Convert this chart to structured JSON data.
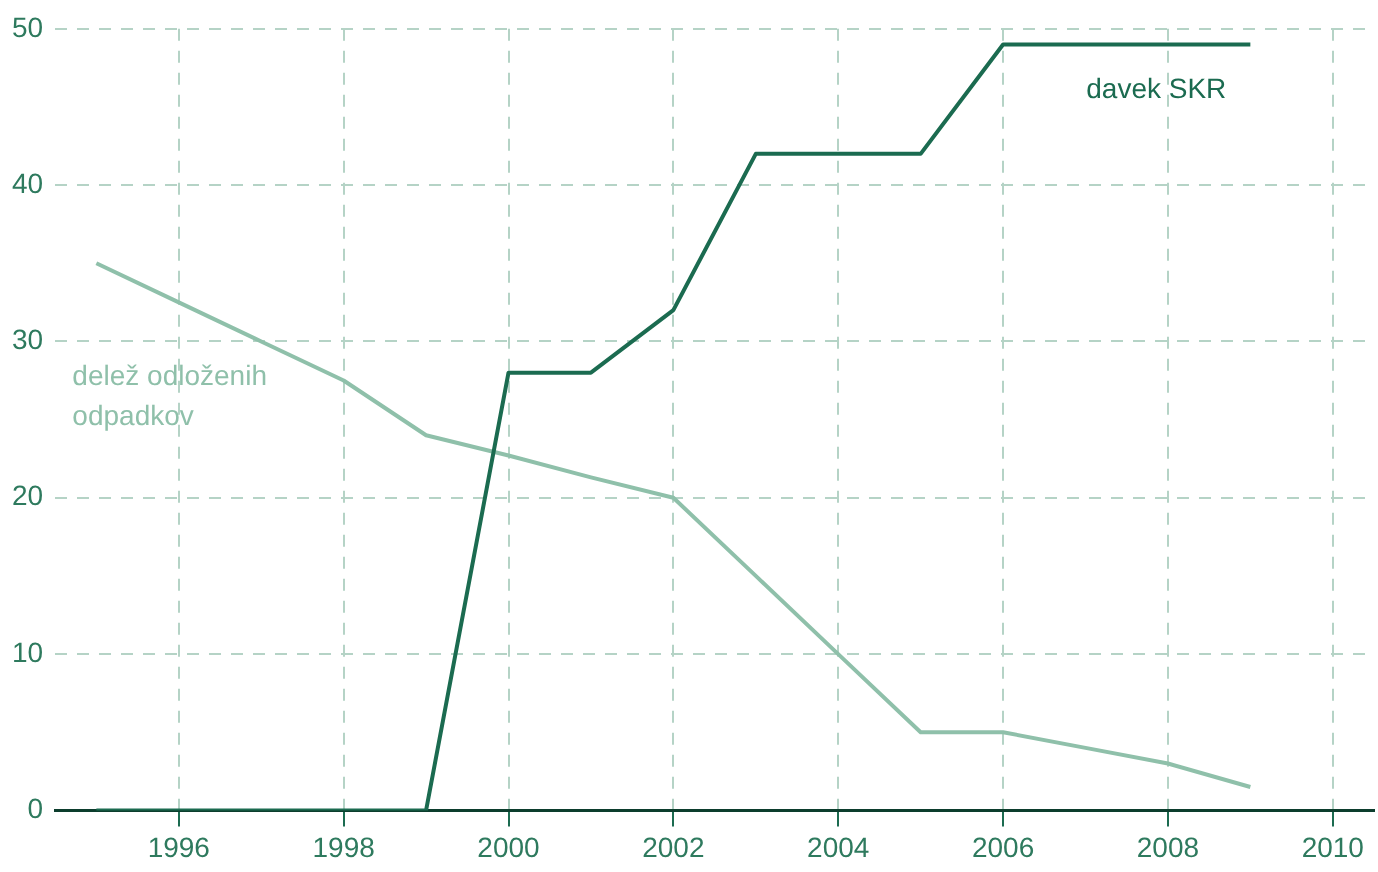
{
  "chart_data": {
    "type": "line",
    "x": [
      1995,
      1996,
      1997,
      1998,
      1999,
      2000,
      2001,
      2002,
      2003,
      2004,
      2005,
      2006,
      2007,
      2008,
      2009
    ],
    "series": [
      {
        "name": "davek SKR",
        "color": "#1b6b50",
        "values": [
          0,
          0,
          0,
          0,
          0,
          28,
          28,
          32,
          42,
          42,
          42,
          49,
          49,
          49,
          49
        ]
      },
      {
        "name": "delež odloženih odpadkov",
        "color": "#8fc0aa",
        "values": [
          35,
          32.5,
          30,
          27.5,
          24,
          22.7,
          21.3,
          20,
          15,
          10,
          5,
          5,
          4,
          3,
          1.5
        ]
      }
    ],
    "xlim": [
      1994.5,
      2010.5
    ],
    "xticks": [
      1996,
      1998,
      2000,
      2002,
      2004,
      2006,
      2008,
      2010
    ],
    "ylim": [
      0,
      50
    ],
    "yticks": [
      0,
      10,
      20,
      30,
      40,
      50
    ],
    "grid": true,
    "legend": false,
    "marker": "none",
    "line_style": "solid"
  }
}
